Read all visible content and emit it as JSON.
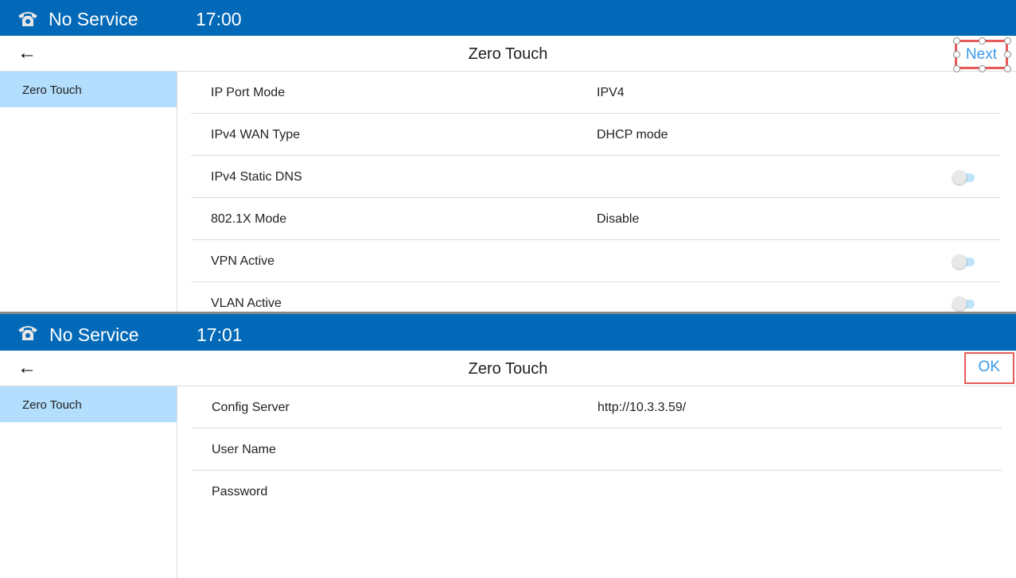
{
  "screens": [
    {
      "status": {
        "service": "No Service",
        "time": "17:00"
      },
      "header": {
        "back": "←",
        "title": "Zero Touch",
        "action": "Next"
      },
      "sidebar": {
        "items": [
          {
            "label": "Zero Touch",
            "selected": true
          }
        ]
      },
      "rows": [
        {
          "label": "IP Port Mode",
          "value": "IPV4"
        },
        {
          "label": "IPv4 WAN Type",
          "value": "DHCP mode"
        },
        {
          "label": "IPv4 Static DNS",
          "toggle": false
        },
        {
          "label": "802.1X Mode",
          "value": "Disable"
        },
        {
          "label": "VPN Active",
          "toggle": false
        },
        {
          "label": "VLAN Active",
          "toggle": false
        }
      ]
    },
    {
      "status": {
        "service": "No Service",
        "time": "17:01"
      },
      "header": {
        "back": "←",
        "title": "Zero Touch",
        "action": "OK"
      },
      "sidebar": {
        "items": [
          {
            "label": "Zero Touch",
            "selected": true
          }
        ]
      },
      "rows": [
        {
          "label": "Config Server",
          "value": "http://10.3.3.59/"
        },
        {
          "label": "User Name",
          "value": ""
        },
        {
          "label": "Password",
          "value": ""
        }
      ]
    }
  ],
  "colors": {
    "status_bar": "#0169b7",
    "selected": "#b3defd",
    "action": "#3a9ae8",
    "highlight": "#e85a5a"
  }
}
